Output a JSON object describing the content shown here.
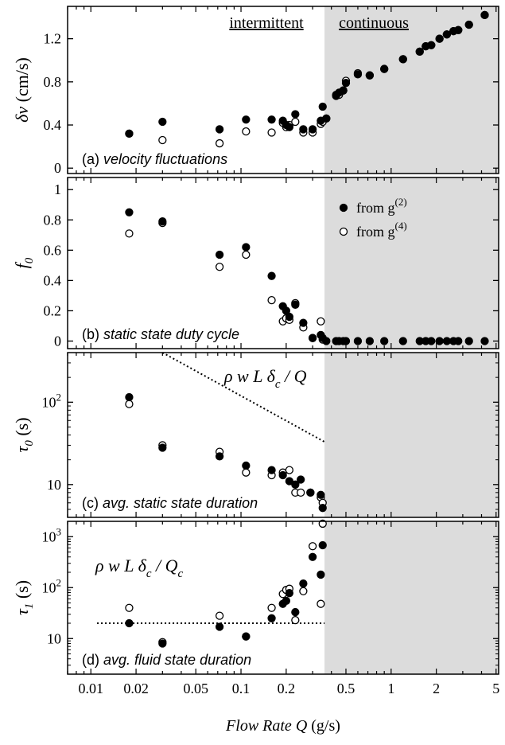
{
  "chart_data": [
    {
      "panel": "a",
      "type": "scatter",
      "label": "(a)",
      "label_text": "velocity fluctuations",
      "ylabel": "δv",
      "ylabel_unit": "(cm/s)",
      "yscale": "linear",
      "ylim": [
        -0.05,
        1.5
      ],
      "yticks": [
        "0",
        "0.4",
        "0.8",
        "1.2"
      ],
      "regime_labels": [
        "intermittent",
        "continuous"
      ],
      "series": [
        {
          "marker": "filled",
          "x": [
            0.018,
            0.03,
            0.072,
            0.108,
            0.16,
            0.19,
            0.2,
            0.21,
            0.23,
            0.26,
            0.3,
            0.34,
            0.35,
            0.37,
            0.43,
            0.45,
            0.48,
            0.5,
            0.6,
            0.72,
            0.9,
            1.2,
            1.55,
            1.7,
            1.85,
            2.1,
            2.35,
            2.6,
            2.8,
            3.3,
            4.2
          ],
          "y": [
            0.32,
            0.43,
            0.36,
            0.45,
            0.45,
            0.44,
            0.4,
            0.38,
            0.5,
            0.36,
            0.36,
            0.44,
            0.57,
            0.46,
            0.67,
            0.7,
            0.72,
            0.79,
            0.87,
            0.86,
            0.92,
            1.01,
            1.08,
            1.13,
            1.14,
            1.2,
            1.24,
            1.27,
            1.28,
            1.33,
            1.42
          ]
        },
        {
          "marker": "open",
          "x": [
            0.018,
            0.03,
            0.072,
            0.108,
            0.16,
            0.19,
            0.2,
            0.21,
            0.23,
            0.26,
            0.3,
            0.34,
            0.35,
            0.37,
            0.43,
            0.45,
            0.48,
            0.5,
            0.6,
            0.72,
            0.9,
            1.2,
            1.55,
            1.7,
            1.85,
            2.1,
            2.35,
            2.6,
            2.8,
            3.3,
            4.2
          ],
          "y": [
            0.32,
            0.26,
            0.23,
            0.34,
            0.33,
            0.42,
            0.38,
            0.4,
            0.43,
            0.33,
            0.33,
            0.41,
            0.43,
            0.46,
            0.68,
            0.68,
            0.72,
            0.81,
            0.88,
            0.86,
            0.92,
            1.01,
            1.08,
            1.13,
            1.14,
            1.2,
            1.24,
            1.27,
            1.28,
            1.33,
            1.42
          ]
        }
      ]
    },
    {
      "panel": "b",
      "type": "scatter",
      "label": "(b)",
      "label_text": "static state duty cycle",
      "ylabel": "f",
      "ylabel_sub": "0",
      "yscale": "linear",
      "ylim": [
        -0.05,
        1.08
      ],
      "yticks": [
        "0",
        "0.2",
        "0.4",
        "0.6",
        "0.8",
        "1"
      ],
      "legend": [
        {
          "marker": "filled",
          "text": "from g",
          "sup": "(2)"
        },
        {
          "marker": "open",
          "text": "from g",
          "sup": "(4)"
        }
      ],
      "series": [
        {
          "marker": "filled",
          "x": [
            0.018,
            0.03,
            0.072,
            0.108,
            0.16,
            0.19,
            0.2,
            0.21,
            0.23,
            0.26,
            0.3,
            0.34,
            0.35,
            0.37,
            0.43,
            0.45,
            0.48,
            0.5,
            0.6,
            0.72,
            0.9,
            1.2,
            1.55,
            1.7,
            1.85,
            2.1,
            2.35,
            2.6,
            2.8,
            3.3,
            4.2
          ],
          "y": [
            0.85,
            0.79,
            0.57,
            0.62,
            0.43,
            0.23,
            0.2,
            0.16,
            0.24,
            0.12,
            0.02,
            0.04,
            0.02,
            0.0,
            0.0,
            0.0,
            0.0,
            0.0,
            0.0,
            0.0,
            0.0,
            0.0,
            0.0,
            0.0,
            0.0,
            0.0,
            0.0,
            0.0,
            0.0,
            0.0,
            0.0
          ]
        },
        {
          "marker": "open",
          "x": [
            0.018,
            0.03,
            0.072,
            0.108,
            0.16,
            0.19,
            0.2,
            0.21,
            0.23,
            0.26,
            0.3,
            0.34,
            0.35
          ],
          "y": [
            0.71,
            0.78,
            0.49,
            0.57,
            0.27,
            0.13,
            0.15,
            0.14,
            0.25,
            0.09,
            0.02,
            0.13,
            0.01
          ]
        }
      ]
    },
    {
      "panel": "c",
      "type": "scatter",
      "label": "(c)",
      "label_text": "avg. static state duration",
      "ylabel": "τ",
      "ylabel_sub": "0",
      "ylabel_unit": "(s)",
      "yscale": "log",
      "ylim": [
        4,
        400
      ],
      "yticks": [
        "10",
        "10^2"
      ],
      "annotation": {
        "text": "ρ w L δ",
        "sub": "c",
        "tail": " / Q"
      },
      "line": {
        "style": "dotted",
        "x": [
          0.03,
          0.36
        ],
        "y": [
          400,
          33
        ]
      },
      "series": [
        {
          "marker": "filled",
          "x": [
            0.018,
            0.03,
            0.072,
            0.108,
            0.16,
            0.19,
            0.21,
            0.23,
            0.25,
            0.29,
            0.34,
            0.35
          ],
          "y": [
            115,
            28,
            22,
            17,
            15,
            13,
            11,
            10,
            11.5,
            8,
            7.5,
            5.2
          ]
        },
        {
          "marker": "open",
          "x": [
            0.018,
            0.03,
            0.072,
            0.108,
            0.16,
            0.19,
            0.21,
            0.23,
            0.25,
            0.29,
            0.34,
            0.35
          ],
          "y": [
            95,
            30,
            25,
            14,
            13,
            14,
            15,
            8,
            8,
            8,
            7,
            6
          ]
        }
      ]
    },
    {
      "panel": "d",
      "type": "scatter",
      "label": "(d)",
      "label_text": "avg. fluid state duration",
      "ylabel": "τ",
      "ylabel_sub": "1",
      "ylabel_unit": "(s)",
      "yscale": "log",
      "ylim": [
        2,
        2000
      ],
      "yticks": [
        "10",
        "10^2",
        "10^3"
      ],
      "annotation": {
        "text": "ρ w L δ",
        "sub": "c",
        "tail": " / Q",
        "tail_sub": "c"
      },
      "line": {
        "style": "dotted",
        "x": [
          0.011,
          0.36
        ],
        "y": [
          20,
          20
        ]
      },
      "xlabel": "Flow Rate",
      "xlabel_sym": "Q",
      "xlabel_unit": "(g/s)",
      "xscale": "log",
      "xlim": [
        0.007,
        5.2
      ],
      "xticks": [
        "0.01",
        "0.02",
        "0.05",
        "0.1",
        "0.2",
        "0.5",
        "1",
        "2",
        "5"
      ],
      "series": [
        {
          "marker": "filled",
          "x": [
            0.018,
            0.03,
            0.072,
            0.108,
            0.16,
            0.19,
            0.2,
            0.21,
            0.23,
            0.26,
            0.3,
            0.34,
            0.35
          ],
          "y": [
            20,
            8,
            17,
            11,
            25,
            48,
            55,
            78,
            33,
            120,
            400,
            180,
            680
          ]
        },
        {
          "marker": "open",
          "x": [
            0.018,
            0.03,
            0.072,
            0.108,
            0.16,
            0.19,
            0.2,
            0.21,
            0.23,
            0.26,
            0.3,
            0.34,
            0.35
          ],
          "y": [
            40,
            8.5,
            28,
            11,
            40,
            75,
            90,
            95,
            23,
            85,
            650,
            48,
            1800
          ]
        }
      ]
    }
  ],
  "shade_from_x": 0.36,
  "colors": {
    "shade": "#dcdcdc",
    "marker": "#000000",
    "open_fill": "#ffffff"
  }
}
